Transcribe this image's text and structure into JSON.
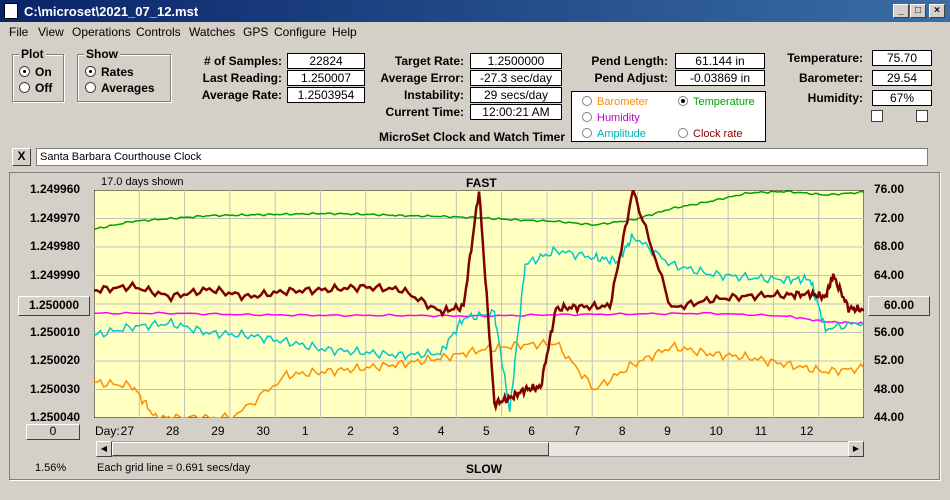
{
  "window": {
    "title": "C:\\microset\\2021_07_12.mst"
  },
  "menu": [
    "File",
    "View",
    "Operations",
    "Controls",
    "Watches",
    "GPS",
    "Configure",
    "Help"
  ],
  "plot_group": {
    "title": "Plot",
    "on": "On",
    "off": "Off",
    "selected": "On"
  },
  "show_group": {
    "title": "Show",
    "rates": "Rates",
    "averages": "Averages",
    "selected": "Rates"
  },
  "stats": {
    "samples_label": "# of Samples:",
    "samples": "22824",
    "last_label": "Last Reading:",
    "last": "1.250007",
    "avg_label": "Average Rate:",
    "avg": "1.2503954"
  },
  "rates": {
    "target_label": "Target Rate:",
    "target": "1.2500000",
    "error_label": "Average Error:",
    "error": "-27.3 sec/day",
    "instab_label": "Instability:",
    "instab": "29 secs/day",
    "time_label": "Current Time:",
    "time": "12:00:21 AM"
  },
  "pendulum": {
    "length_label": "Pend Length:",
    "length": "61.144 in",
    "adjust_label": "Pend Adjust:",
    "adjust": "-0.03869 in"
  },
  "sensors": {
    "sel_barometer": "Barometer",
    "sel_temperature": "Temperature",
    "sel_humidity": "Humidity",
    "sel_amplitude": "Amplitude",
    "sel_clockrate": "Clock rate",
    "selected": "Temperature",
    "temp_label": "Temperature:",
    "temp": "75.70",
    "baro_label": "Barometer:",
    "baro": "29.54",
    "hum_label": "Humidity:",
    "hum": "67%"
  },
  "colors": {
    "barometer": "#ff8c00",
    "temperature": "#00a000",
    "humidity": "#ff00ff",
    "amplitude": "#00c8c8",
    "clockrate": "#800000"
  },
  "subtitle": "MicroSet Clock and Watch Timer",
  "close_button": "X",
  "clock_name": "Santa Barbara Courthouse Clock",
  "chart_data": {
    "type": "line",
    "top_label": "FAST",
    "bottom_label": "SLOW",
    "days_shown": "17.0 days shown",
    "grid_note": "Each grid line = 0.691 secs/day",
    "percent": "1.56%",
    "day_prefix": "Day:",
    "left_button": "1.250000",
    "right_button": "60.00",
    "reset_button": "0",
    "left_ticks": [
      "1.249960",
      "1.249970",
      "1.249980",
      "1.249990",
      "1.250000",
      "1.250010",
      "1.250020",
      "1.250030",
      "1.250040"
    ],
    "right_ticks": [
      "76.00",
      "72.00",
      "68.00",
      "64.00",
      "60.00",
      "56.00",
      "52.00",
      "48.00",
      "44.00"
    ],
    "x_labels": [
      "27",
      "28",
      "29",
      "30",
      "1",
      "2",
      "3",
      "4",
      "5",
      "6",
      "7",
      "8",
      "9",
      "10",
      "11",
      "12"
    ],
    "left_range": [
      1.24996,
      1.25004
    ],
    "right_range": [
      44,
      76
    ],
    "grid": true,
    "series": [
      {
        "name": "Temperature",
        "color": "#00a000",
        "axis": "right",
        "x": [
          0,
          0.05,
          0.1,
          0.15,
          0.2,
          0.25,
          0.3,
          0.35,
          0.4,
          0.45,
          0.5,
          0.55,
          0.6,
          0.65,
          0.7,
          0.75,
          0.8,
          0.85,
          0.9,
          0.95,
          1.0
        ],
        "y": [
          70.5,
          71.6,
          72.0,
          72.4,
          72.5,
          72.6,
          72.7,
          72.6,
          72.4,
          72.3,
          72.1,
          71.8,
          71.6,
          71.1,
          71.8,
          73.4,
          74.4,
          75.6,
          75.8,
          75.3,
          75.7
        ]
      },
      {
        "name": "Humidity",
        "color": "#ff00ff",
        "axis": "right",
        "x": [
          0,
          0.1,
          0.2,
          0.3,
          0.4,
          0.5,
          0.6,
          0.7,
          0.8,
          0.9,
          0.95,
          1.0
        ],
        "y": [
          58.7,
          58.7,
          58.5,
          58.4,
          58.4,
          58.3,
          58.5,
          58.6,
          58.7,
          58.3,
          57.5,
          57.3
        ]
      },
      {
        "name": "Amplitude",
        "color": "#00c8c8",
        "axis": "right",
        "x": [
          0,
          0.05,
          0.1,
          0.15,
          0.2,
          0.25,
          0.3,
          0.35,
          0.4,
          0.45,
          0.48,
          0.52,
          0.54,
          0.56,
          0.6,
          0.65,
          0.68,
          0.7,
          0.75,
          0.8,
          0.85,
          0.9,
          0.93,
          0.95,
          1.0
        ],
        "y": [
          55.6,
          56.8,
          57.3,
          55.9,
          55.6,
          54.7,
          53.6,
          53.2,
          52.8,
          53.1,
          58.0,
          58.7,
          45.0,
          65.6,
          67.5,
          66.5,
          66.0,
          69.5,
          65.5,
          64.2,
          63.7,
          63.4,
          63.5,
          56.5,
          57.5
        ]
      },
      {
        "name": "Barometer",
        "color": "#ff8c00",
        "axis": "right",
        "x": [
          0,
          0.05,
          0.08,
          0.12,
          0.18,
          0.25,
          0.3,
          0.35,
          0.4,
          0.45,
          0.5,
          0.55,
          0.6,
          0.65,
          0.7,
          0.75,
          0.8,
          0.85,
          0.9,
          0.95,
          1.0
        ],
        "y": [
          49.0,
          48.5,
          44.0,
          44.0,
          44.0,
          50.0,
          50.5,
          51.0,
          51.6,
          52.4,
          53.5,
          54.2,
          54.5,
          48.0,
          51.5,
          54.0,
          53.0,
          52.5,
          51.5,
          50.5,
          51.0
        ]
      },
      {
        "name": "Clock rate",
        "color": "#800000",
        "axis": "left",
        "x": [
          0,
          0.05,
          0.1,
          0.15,
          0.2,
          0.25,
          0.3,
          0.35,
          0.4,
          0.45,
          0.48,
          0.5,
          0.52,
          0.54,
          0.56,
          0.58,
          0.6,
          0.63,
          0.67,
          0.7,
          0.75,
          0.8,
          0.85,
          0.9,
          0.93,
          0.95,
          0.96,
          0.98,
          1.0
        ],
        "y": [
          1.2499952,
          1.2499938,
          1.2499975,
          1.2499948,
          1.2499975,
          1.2499955,
          1.249995,
          1.249994,
          1.249995,
          1.2500028,
          1.2500008,
          1.24996,
          1.250035,
          1.250033,
          1.25003,
          1.2500292,
          1.2500016,
          1.250001,
          1.2500008,
          1.24996,
          1.2500015,
          1.2499985,
          1.2499972,
          1.2499968,
          1.2499965,
          1.2499975,
          1.24999,
          1.2500015,
          1.250002
        ]
      }
    ]
  }
}
